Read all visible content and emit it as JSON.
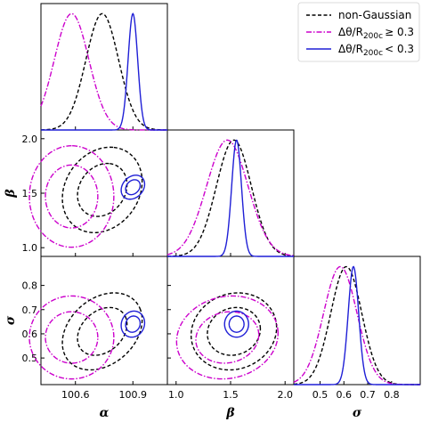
{
  "chart_data": {
    "type": "corner-plot",
    "parameters": [
      {
        "symbol": "α",
        "range": [
          100.42,
          101.08
        ],
        "ticks": [
          100.6,
          100.9
        ],
        "tick_labels": [
          "100.6",
          "100.9"
        ]
      },
      {
        "symbol": "β",
        "range": [
          0.92,
          2.08
        ],
        "ticks": [
          1.0,
          1.5,
          2.0
        ],
        "tick_labels": [
          "1.0",
          "1.5",
          "2.0"
        ]
      },
      {
        "symbol": "σ",
        "range": [
          0.39,
          0.92
        ],
        "ticks": [
          0.5,
          0.6,
          0.7,
          0.8
        ],
        "tick_labels": [
          "0.5",
          "0.6",
          "0.7",
          "0.8"
        ]
      }
    ],
    "series": [
      {
        "name": "non-Gaussian",
        "color": "#000000",
        "style": "dashed",
        "mean": [
          100.74,
          1.53,
          0.61
        ],
        "std": [
          0.085,
          0.16,
          0.065
        ],
        "corr": {
          "1-0": 0.2,
          "2-0": 0.3,
          "2-1": 0.1
        }
      },
      {
        "name": "Δθ/R200c ≥ 0.3",
        "color": "#cc00cc",
        "style": "dashdot",
        "mean": [
          100.58,
          1.47,
          0.585
        ],
        "std": [
          0.09,
          0.19,
          0.07
        ],
        "corr": {
          "1-0": 0.0,
          "2-0": 0.0,
          "2-1": 0.1
        }
      },
      {
        "name": "Δθ/R200c < 0.3",
        "color": "#1f1fd6",
        "style": "solid",
        "mean": [
          100.9,
          1.555,
          0.64
        ],
        "std": [
          0.025,
          0.045,
          0.022
        ],
        "corr": {
          "1-0": 0.25,
          "2-0": 0.1,
          "2-1": 0.0
        }
      }
    ],
    "legend": {
      "placement": "top-right",
      "entries": [
        {
          "main": "non-Gaussian"
        },
        {
          "main": "Δθ/R",
          "sub": "200c",
          "rest": "≥ 0.3"
        },
        {
          "main": "Δθ/R",
          "sub": "200c",
          "rest": "< 0.3"
        }
      ]
    },
    "grid": false
  }
}
